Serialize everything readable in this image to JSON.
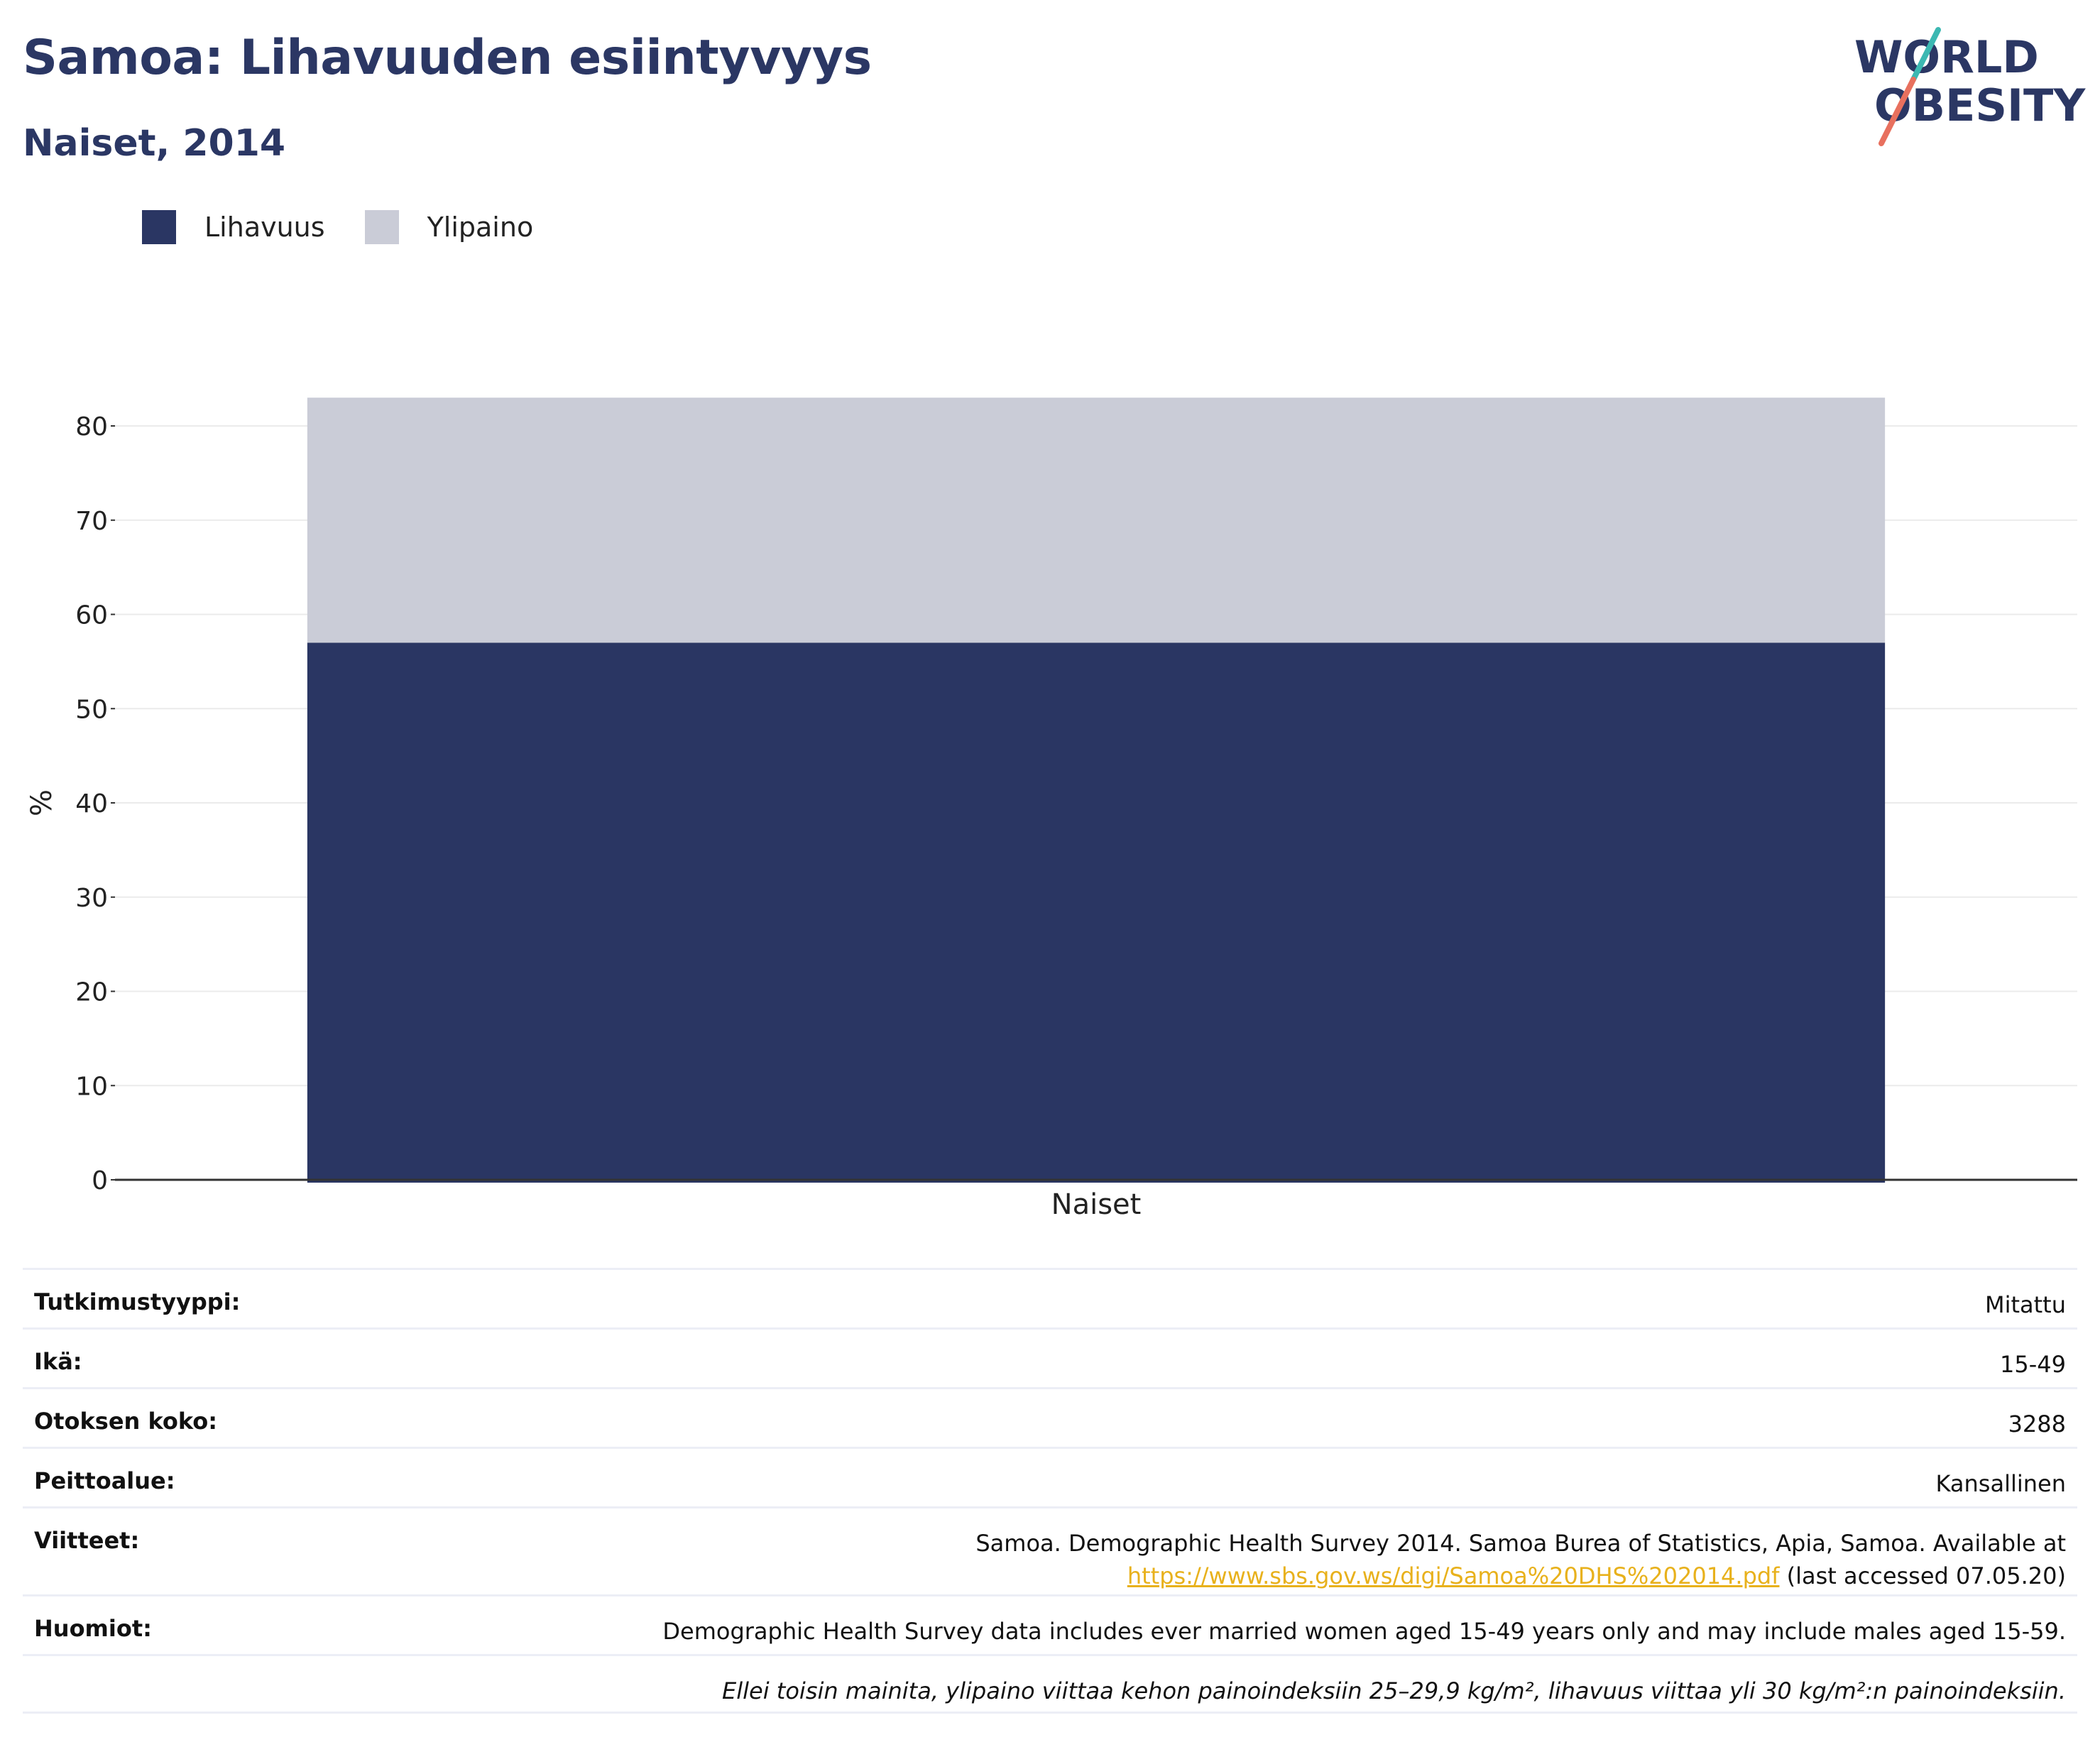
{
  "header": {
    "title": "Samoa: Lihavuuden esiintyvyys",
    "subtitle": "Naiset, 2014"
  },
  "logo": {
    "line1": "WORLD",
    "line2": "OBESITY",
    "text_color": "#2b3764",
    "accent_teal": "#3cb8b2",
    "accent_coral": "#e8705e"
  },
  "legend": [
    {
      "label": "Lihavuus",
      "color": "#2a3663"
    },
    {
      "label": "Ylipaino",
      "color": "#caccd7"
    }
  ],
  "chart_data": {
    "type": "bar",
    "stacked": true,
    "categories": [
      "Naiset"
    ],
    "series": [
      {
        "name": "Lihavuus",
        "values": [
          57
        ],
        "color": "#2a3663"
      },
      {
        "name": "Ylipaino",
        "values": [
          26
        ],
        "color": "#caccd7"
      }
    ],
    "ylabel": "%",
    "xlabel": "",
    "ylim": [
      0,
      83
    ],
    "yticks": [
      0,
      10,
      20,
      30,
      40,
      50,
      60,
      70,
      80
    ],
    "grid": true,
    "legend_position": "top-left"
  },
  "info": {
    "study_type": {
      "label": "Tutkimustyyppi:",
      "value": "Mitattu"
    },
    "age": {
      "label": "Ikä:",
      "value": "15-49"
    },
    "sample_size": {
      "label": "Otoksen koko:",
      "value": "3288"
    },
    "coverage": {
      "label": "Peittoalue:",
      "value": "Kansallinen"
    },
    "references": {
      "label": "Viitteet:",
      "text": "Samoa. Demographic Health Survey 2014. Samoa Burea of Statistics, Apia, Samoa. Available at",
      "link": "https://www.sbs.gov.ws/digi/Samoa%20DHS%202014.pdf",
      "suffix": " (last accessed 07.05.20)"
    },
    "notes": {
      "label": "Huomiot:",
      "value": "Demographic Health Survey data includes ever married women aged 15-49 years only and may include males aged 15-59."
    },
    "definition": "Ellei toisin mainita, ylipaino viittaa kehon painoindeksiin 25–29,9 kg/m², lihavuus viittaa yli 30 kg/m²:n painoindeksiin."
  }
}
